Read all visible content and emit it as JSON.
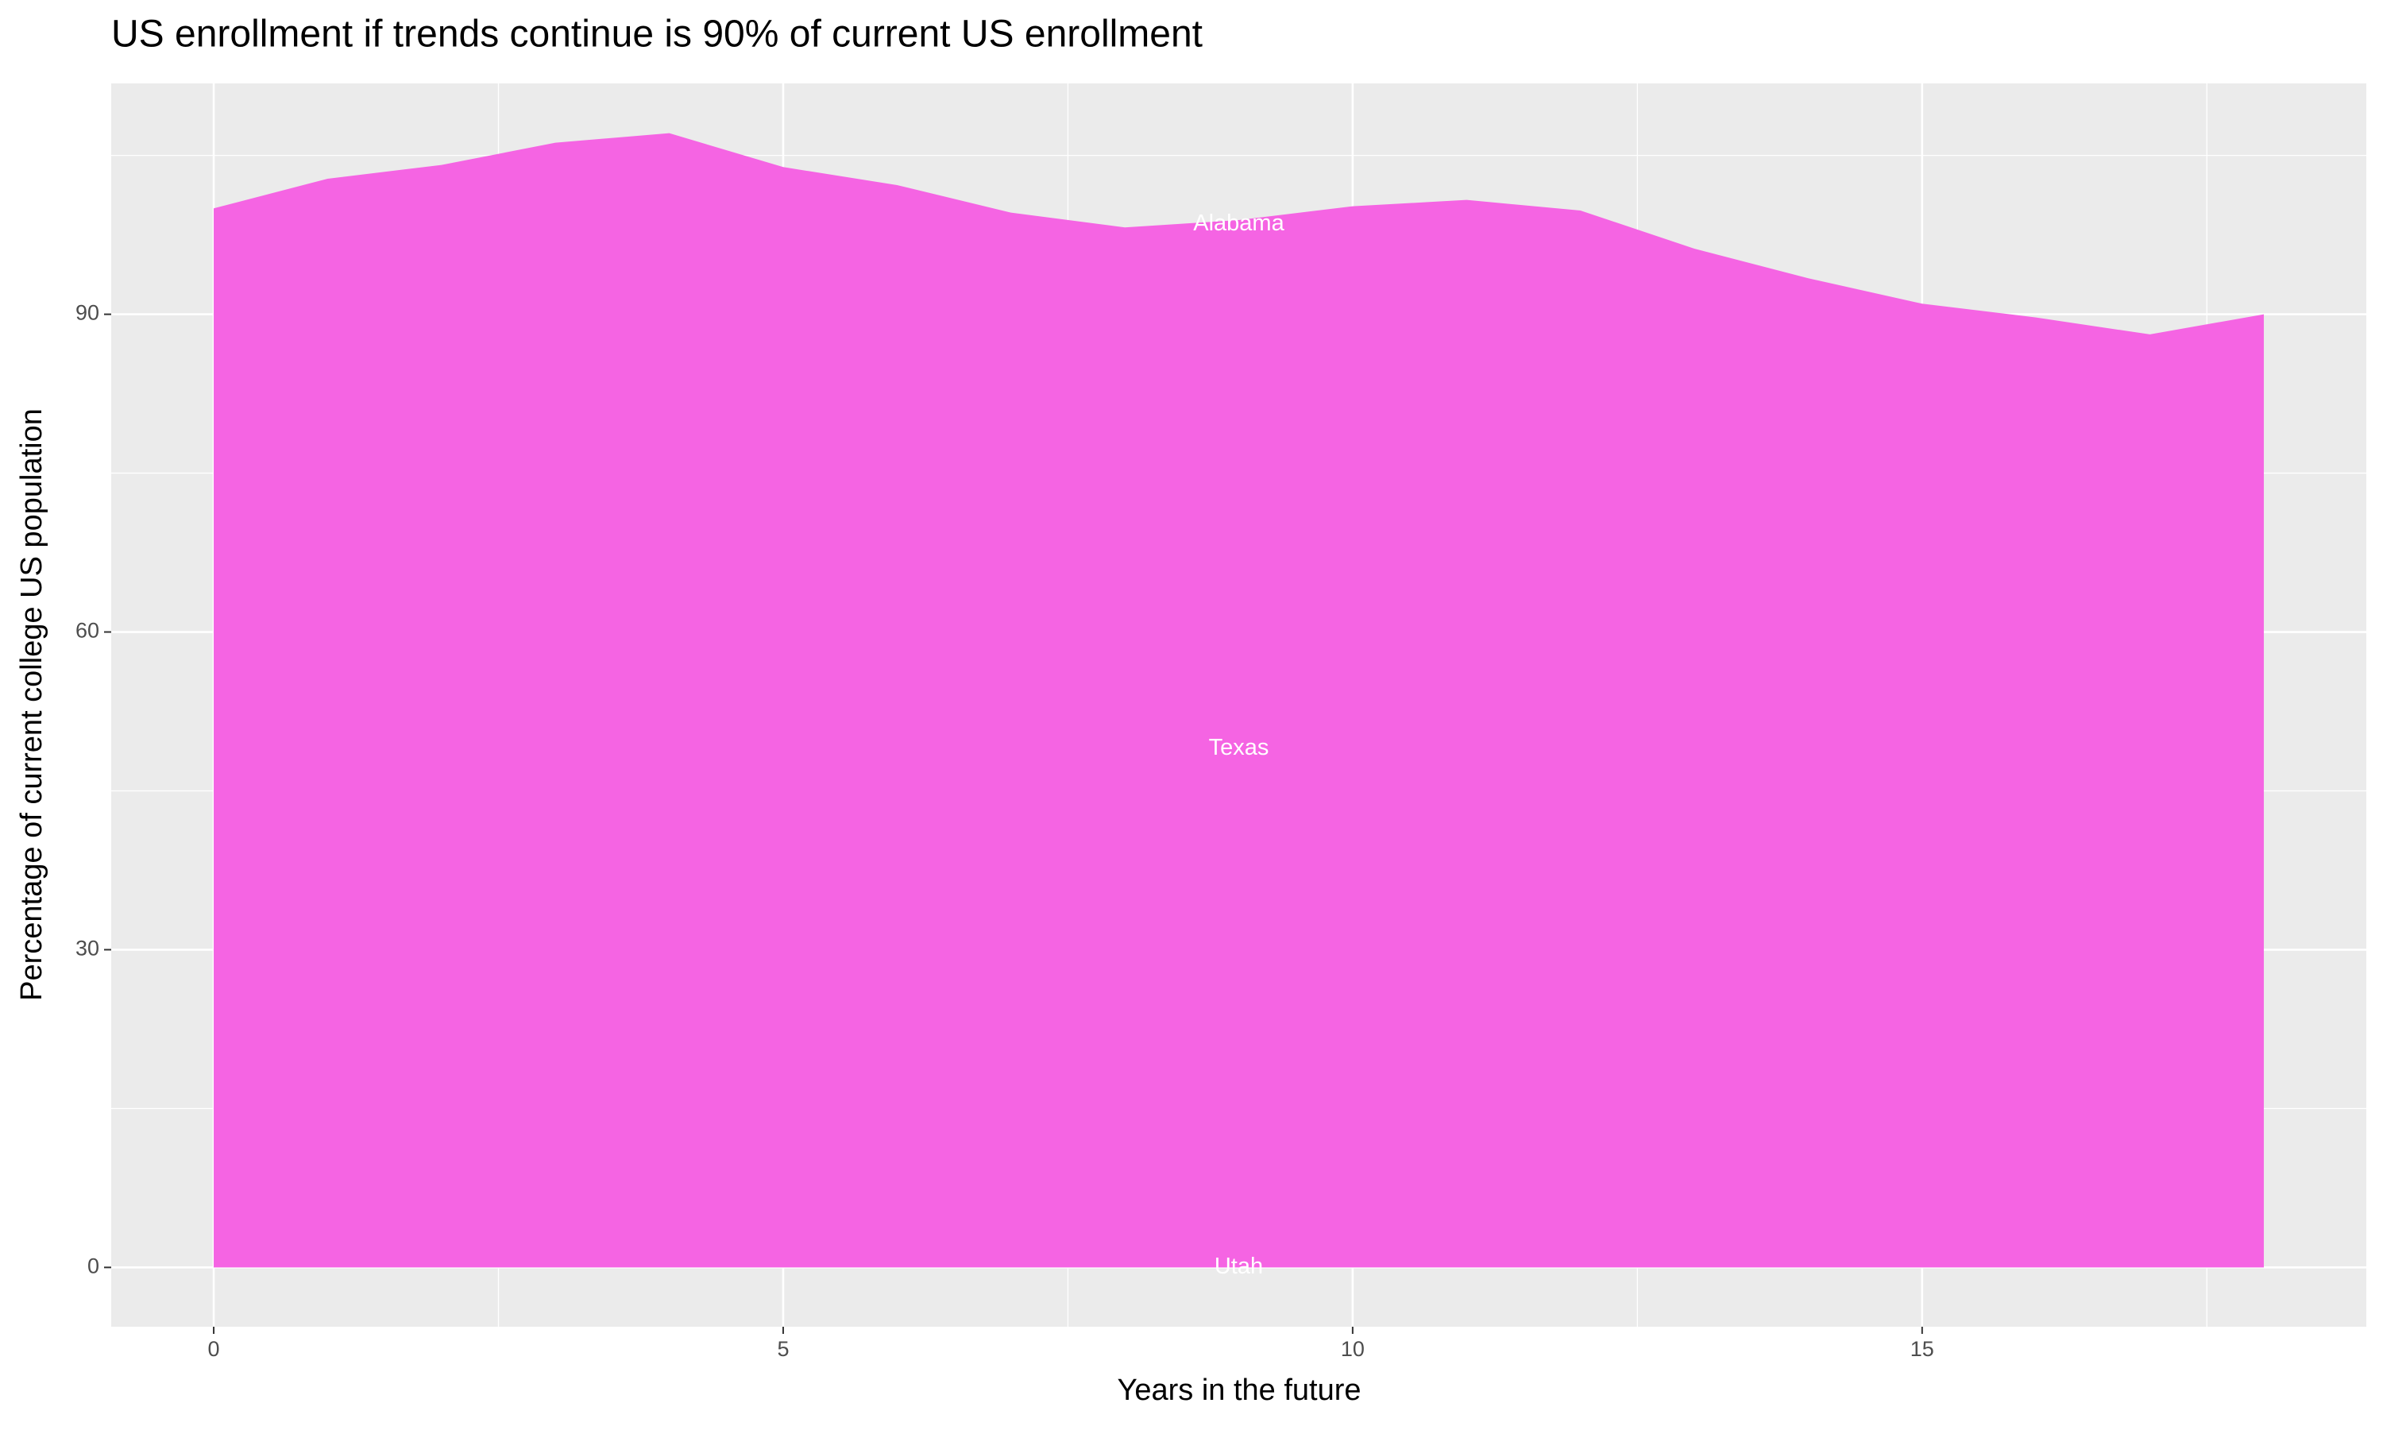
{
  "chart_data": {
    "type": "area",
    "title": "US enrollment if trends continue is 90% of current US enrollment",
    "x_label": "Years in the future",
    "y_label": "Percentage of current college US population",
    "x": [
      0,
      1,
      2,
      3,
      4,
      5,
      6,
      7,
      8,
      9,
      10,
      11,
      12,
      13,
      14,
      15,
      16,
      17,
      18
    ],
    "values": [
      100.0,
      102.8,
      104.1,
      106.2,
      107.1,
      103.9,
      102.2,
      99.6,
      98.2,
      98.9,
      100.2,
      100.8,
      99.8,
      96.2,
      93.4,
      91.0,
      89.7,
      88.1,
      90.0
    ],
    "color": "#F564E3",
    "xlim": [
      -0.9,
      18.9
    ],
    "ylim": [
      -5.6,
      111.8
    ],
    "xticks": [
      0,
      5,
      10,
      15
    ],
    "yticks": [
      0,
      30,
      60,
      90
    ],
    "minor_xticks": [
      2.5,
      7.5,
      12.5,
      17.5
    ],
    "minor_yticks": [
      15,
      45,
      75,
      105
    ],
    "grid": true,
    "annotations": [
      {
        "text": "Alabama",
        "x": 9,
        "y": 98.5
      },
      {
        "text": "Texas",
        "x": 9,
        "y": 49
      },
      {
        "text": "Utah",
        "x": 9,
        "y": 0
      }
    ]
  }
}
